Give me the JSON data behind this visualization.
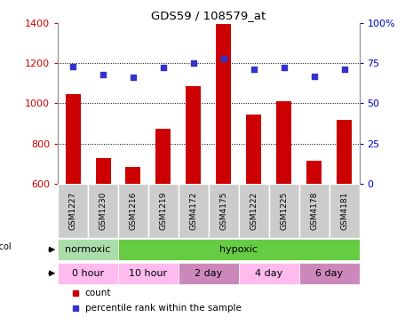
{
  "title": "GDS59 / 108579_at",
  "samples": [
    "GSM1227",
    "GSM1230",
    "GSM1216",
    "GSM1219",
    "GSM4172",
    "GSM4175",
    "GSM1222",
    "GSM1225",
    "GSM4178",
    "GSM4181"
  ],
  "counts": [
    1045,
    730,
    685,
    875,
    1085,
    1395,
    945,
    1010,
    715,
    920
  ],
  "percentiles": [
    73,
    68,
    66,
    72,
    75,
    78,
    71,
    72,
    67,
    71
  ],
  "ylim_left": [
    600,
    1400
  ],
  "ylim_right": [
    0,
    100
  ],
  "yticks_left": [
    600,
    800,
    1000,
    1200,
    1400
  ],
  "yticks_right": [
    0,
    25,
    50,
    75,
    100
  ],
  "bar_color": "#cc0000",
  "dot_color": "#3333cc",
  "grid_color": "#000000",
  "sample_band_color": "#cccccc",
  "protocol_normoxic_color": "#aaddaa",
  "protocol_hypoxic_color": "#66cc44",
  "time_colors": [
    "#ffbbee",
    "#ffbbee",
    "#cc88bb",
    "#ffbbee",
    "#cc88bb"
  ],
  "time_labels": [
    "0 hour",
    "10 hour",
    "2 day",
    "4 day",
    "6 day"
  ],
  "legend_count_color": "#cc0000",
  "legend_pct_color": "#3333cc",
  "bg_color": "#ffffff",
  "axis_label_color_left": "#cc0000",
  "axis_label_color_right": "#0000cc"
}
